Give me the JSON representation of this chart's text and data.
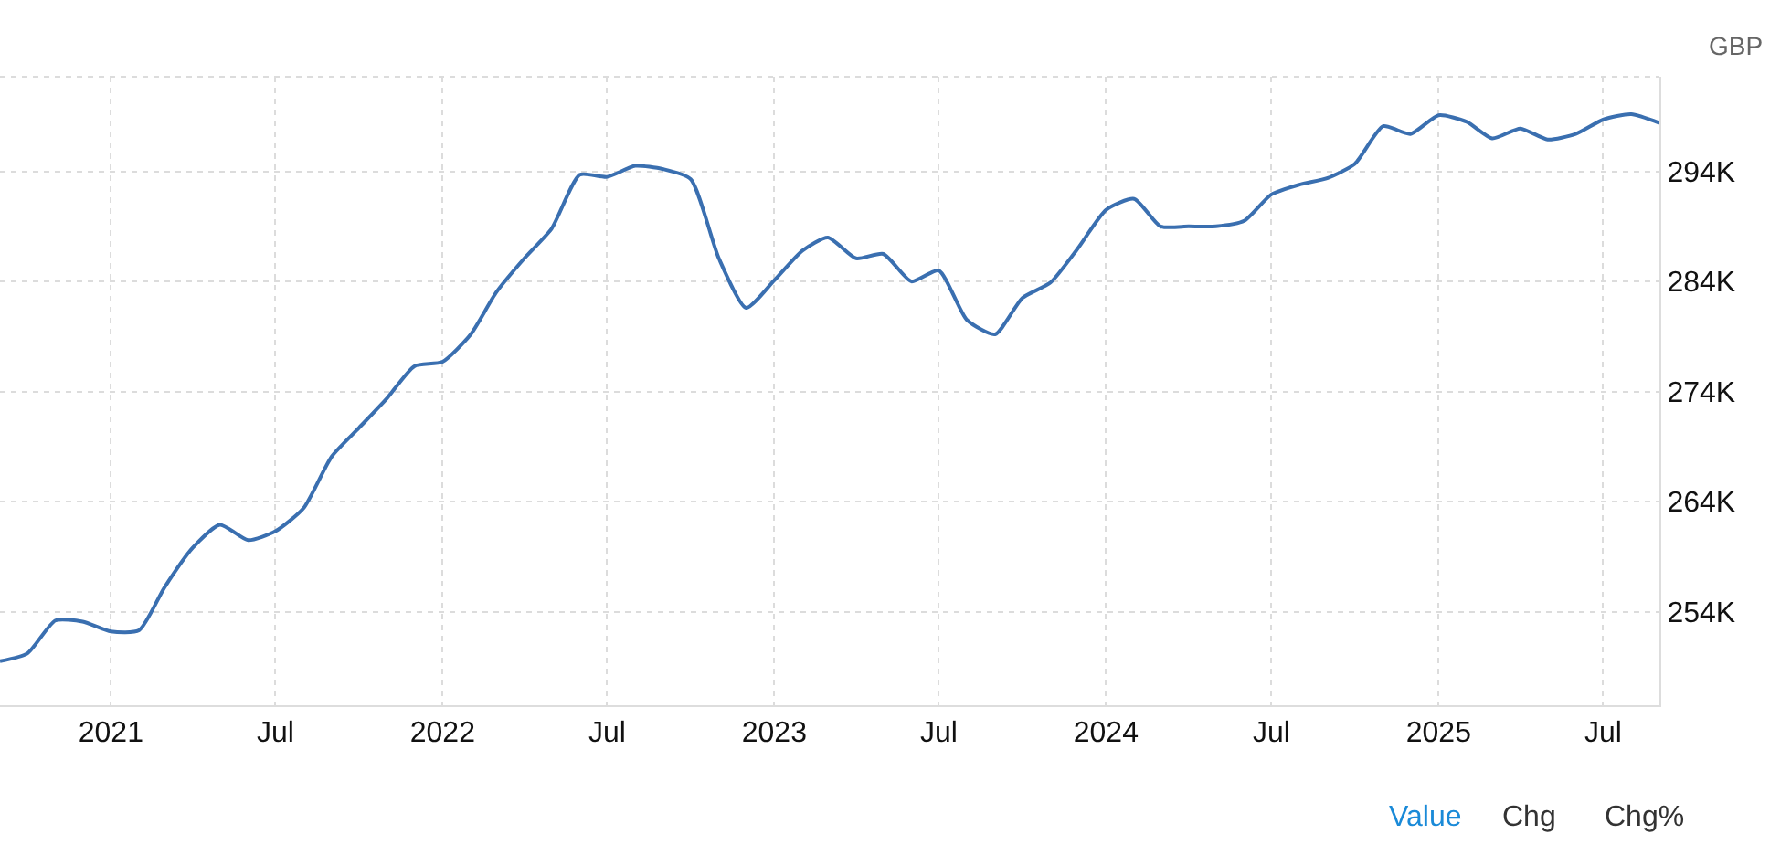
{
  "chart_data": {
    "type": "line",
    "ylabel": "GBP",
    "x": [
      "2020-09",
      "2020-10",
      "2020-11",
      "2020-12",
      "2021-01",
      "2021-02",
      "2021-03",
      "2021-04",
      "2021-05",
      "2021-06",
      "2021-07",
      "2021-08",
      "2021-09",
      "2021-10",
      "2021-11",
      "2021-12",
      "2022-01",
      "2022-02",
      "2022-03",
      "2022-04",
      "2022-05",
      "2022-06",
      "2022-07",
      "2022-08",
      "2022-09",
      "2022-10",
      "2022-11",
      "2022-12",
      "2023-01",
      "2023-02",
      "2023-03",
      "2023-04",
      "2023-05",
      "2023-06",
      "2023-07",
      "2023-08",
      "2023-09",
      "2023-10",
      "2023-11",
      "2023-12",
      "2024-01",
      "2024-02",
      "2024-03",
      "2024-04",
      "2024-05",
      "2024-06",
      "2024-07",
      "2024-08",
      "2024-09",
      "2024-10",
      "2024-11",
      "2024-12",
      "2025-01",
      "2025-02",
      "2025-03",
      "2025-04",
      "2025-05",
      "2025-06",
      "2025-07",
      "2025-08",
      "2025-09"
    ],
    "series": [
      {
        "color": "#3a6fb0",
        "values": [
          249500,
          250200,
          253200,
          253100,
          252200,
          252300,
          256200,
          259800,
          261900,
          260500,
          261300,
          263400,
          268100,
          270700,
          273400,
          276300,
          276700,
          279200,
          283000,
          286100,
          288800,
          293700,
          293500,
          294500,
          294200,
          293300,
          286100,
          281600,
          284100,
          286800,
          288000,
          286100,
          286500,
          284000,
          285000,
          280500,
          279200,
          282500,
          283900,
          287000,
          290500,
          291500,
          289000,
          289000,
          289000,
          289500,
          291900,
          292800,
          293400,
          294700,
          298100,
          297400,
          299100,
          298500,
          297000,
          297900,
          296900,
          297400,
          298700,
          299200,
          298400
        ]
      }
    ],
    "xlim": [
      "2020-09",
      "2025-09"
    ],
    "xticks": [
      {
        "value": "2021-01",
        "label": "2021"
      },
      {
        "value": "2021-07",
        "label": "Jul"
      },
      {
        "value": "2022-01",
        "label": "2022"
      },
      {
        "value": "2022-07",
        "label": "Jul"
      },
      {
        "value": "2023-01",
        "label": "2023"
      },
      {
        "value": "2023-07",
        "label": "Jul"
      },
      {
        "value": "2024-01",
        "label": "2024"
      },
      {
        "value": "2024-07",
        "label": "Jul"
      },
      {
        "value": "2025-01",
        "label": "2025"
      },
      {
        "value": "2025-07",
        "label": "Jul"
      }
    ],
    "ylim": [
      245500,
      302600
    ],
    "yticks": [
      {
        "value": 254000,
        "label": "254K"
      },
      {
        "value": 264000,
        "label": "264K"
      },
      {
        "value": 274000,
        "label": "274K"
      },
      {
        "value": 284000,
        "label": "284K"
      },
      {
        "value": 294000,
        "label": "294K"
      }
    ],
    "grid": true,
    "marker": "none",
    "line_style": "solid",
    "annotations": [
      "Value",
      "Chg",
      "Chg%"
    ]
  }
}
